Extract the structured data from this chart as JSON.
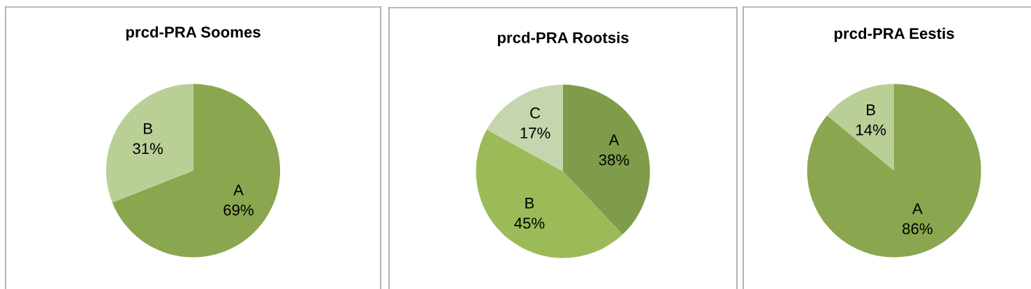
{
  "chart_data": [
    {
      "type": "pie",
      "title": "prcd-PRA Soomes",
      "categories": [
        "A",
        "B"
      ],
      "values": [
        69,
        31
      ],
      "colors": [
        "#8aa64e",
        "#b9cf96"
      ],
      "value_labels": [
        "69%",
        "31%"
      ]
    },
    {
      "type": "pie",
      "title": "prcd-PRA Rootsis",
      "categories": [
        "A",
        "B",
        "C"
      ],
      "values": [
        38,
        45,
        17
      ],
      "colors": [
        "#7f9c4a",
        "#9bbb59",
        "#c5d6ae"
      ],
      "value_labels": [
        "38%",
        "45%",
        "17%"
      ]
    },
    {
      "type": "pie",
      "title": "prcd-PRA Eestis",
      "categories": [
        "A",
        "B"
      ],
      "values": [
        86,
        14
      ],
      "colors": [
        "#8aa64e",
        "#b9cf96"
      ],
      "value_labels": [
        "86%",
        "14%"
      ]
    }
  ]
}
